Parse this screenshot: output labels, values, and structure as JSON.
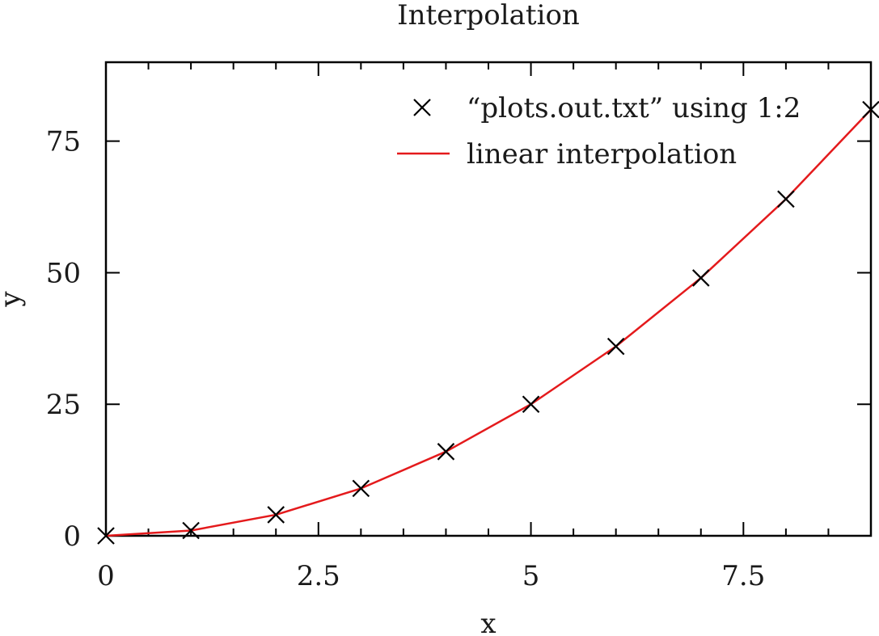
{
  "chart_data": {
    "type": "line",
    "title": "Interpolation",
    "xlabel": "x",
    "ylabel": "y",
    "xlim": [
      0,
      9
    ],
    "ylim": [
      0,
      90
    ],
    "x_ticks": [
      0,
      2.5,
      5,
      7.5
    ],
    "x_tick_labels": [
      "0",
      "2.5",
      "5",
      "7.5"
    ],
    "x_minor_ticks": [
      0.5,
      1,
      1.5,
      2,
      3,
      3.5,
      4,
      4.5,
      5.5,
      6,
      6.5,
      7,
      8,
      8.5
    ],
    "y_ticks": [
      0,
      25,
      50,
      75
    ],
    "y_tick_labels": [
      "0",
      "25",
      "50",
      "75"
    ],
    "grid": false,
    "legend_position": "top-right",
    "series": [
      {
        "name": "“plots.out.txt” using 1:2",
        "style": "markers",
        "marker": "x-cross",
        "color": "#000000",
        "x": [
          0,
          1,
          2,
          3,
          4,
          5,
          6,
          7,
          8,
          9
        ],
        "y": [
          0,
          1,
          4,
          9,
          16,
          25,
          36,
          49,
          64,
          81
        ]
      },
      {
        "name": "linear interpolation",
        "style": "line",
        "color": "#e41a1c",
        "x": [
          0,
          1,
          2,
          3,
          4,
          5,
          6,
          7,
          8,
          9
        ],
        "y": [
          0,
          1,
          4,
          9,
          16,
          25,
          36,
          49,
          64,
          81
        ]
      }
    ]
  }
}
